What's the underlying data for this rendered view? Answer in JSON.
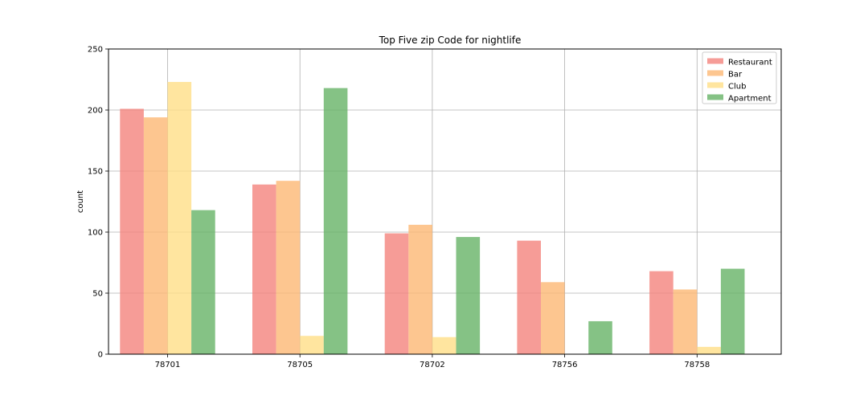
{
  "chart_data": {
    "type": "bar",
    "title": "Top Five zip Code for nightlife",
    "xlabel": "",
    "ylabel": "count",
    "categories": [
      "78701",
      "78705",
      "78702",
      "78756",
      "78758"
    ],
    "series": [
      {
        "name": "Restaurant",
        "values": [
          201,
          139,
          99,
          93,
          68
        ],
        "color": "#f4837d"
      },
      {
        "name": "Bar",
        "values": [
          194,
          142,
          106,
          59,
          53
        ],
        "color": "#fdb874"
      },
      {
        "name": "Club",
        "values": [
          223,
          15,
          14,
          0,
          6
        ],
        "color": "#ffde87"
      },
      {
        "name": "Apartment",
        "values": [
          118,
          218,
          96,
          27,
          70
        ],
        "color": "#66b366"
      }
    ],
    "ylim": [
      0,
      250
    ],
    "yticks": [
      0,
      50,
      100,
      150,
      200,
      250
    ],
    "grid": true,
    "legend_position": "top-right",
    "bar_opacity": 0.8
  }
}
